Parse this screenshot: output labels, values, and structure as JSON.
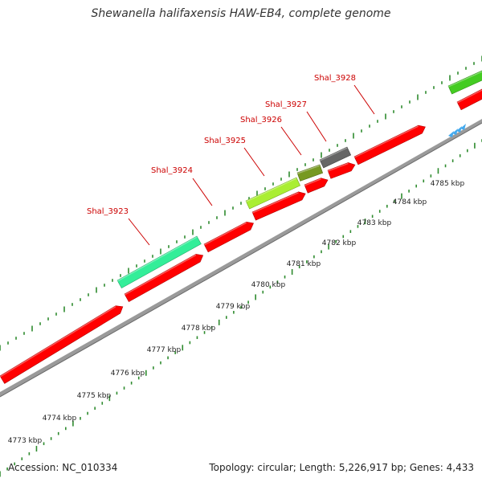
{
  "title": "Shewanella halifaxensis HAW-EB4, complete genome",
  "footer": {
    "accession": "Accession: NC_010334",
    "summary": "Topology: circular; Length: 5,226,917 bp; Genes: 4,433"
  },
  "colors": {
    "cds": "#ff0000",
    "backbone": "#9a9a9a",
    "ticks": "#2e8b2e",
    "label": "#cc0000",
    "teal_feature": "#33ee99",
    "lime_feature": "#aaee33",
    "olive_feature": "#779922",
    "gray_feature": "#666666",
    "green_feature": "#44cc22",
    "arrows": "#44aaee"
  },
  "gene_labels": [
    "Shal_3923",
    "Shal_3924",
    "Shal_3925",
    "Shal_3926",
    "Shal_3927",
    "Shal_3928"
  ],
  "scale_labels": [
    "4773 kbp",
    "4774 kbp",
    "4775 kbp",
    "4776 kbp",
    "4777 kbp",
    "4778 kbp",
    "4779 kbp",
    "4780 kbp",
    "4781 kbp",
    "4782 kbp",
    "4783 kbp",
    "4784 kbp",
    "4785 kbp"
  ]
}
